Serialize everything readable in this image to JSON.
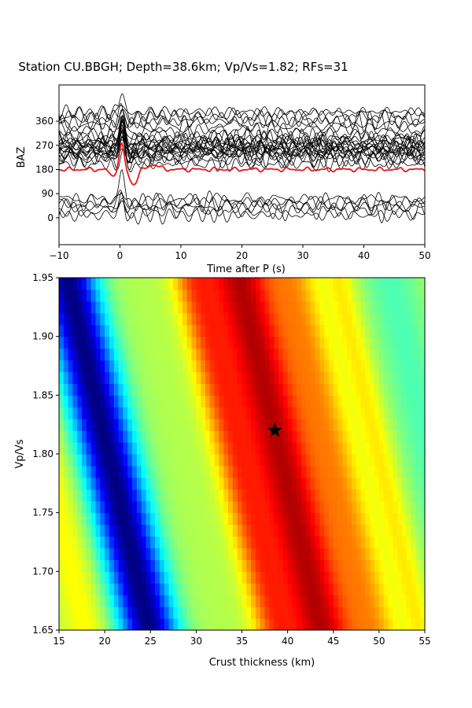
{
  "title": "Station CU.BBGH; Depth=38.6km; Vp/Vs=1.82; RFs=31",
  "chart_data": [
    {
      "type": "line",
      "name": "receiver-functions",
      "xlabel": "Time after P (s)",
      "ylabel": "BAZ",
      "xlim": [
        -10,
        50
      ],
      "ylim": [
        -100,
        495
      ],
      "xticks": [
        -10,
        0,
        10,
        20,
        30,
        40,
        50
      ],
      "yticks": [
        0,
        90,
        180,
        270,
        360
      ],
      "trace_count": 31,
      "trace_color": "#000000",
      "stack_color": "#e8161b",
      "stack_baz": 180,
      "trace_baz": [
        10,
        25,
        40,
        50,
        60,
        70,
        200,
        215,
        225,
        232,
        238,
        242,
        246,
        250,
        254,
        258,
        262,
        266,
        270,
        275,
        280,
        286,
        292,
        300,
        310,
        330,
        345,
        360,
        372,
        385,
        395
      ],
      "grid": false
    },
    {
      "type": "heatmap",
      "name": "hk-stacking",
      "xlabel": "Crust thickness (km)",
      "ylabel": "Vp/Vs",
      "xlim": [
        15,
        55
      ],
      "ylim": [
        1.65,
        1.95
      ],
      "xticks": [
        15,
        20,
        25,
        30,
        35,
        40,
        45,
        50,
        55
      ],
      "yticks": [
        "1.65",
        "1.70",
        "1.75",
        "1.80",
        "1.85",
        "1.90",
        "1.95"
      ],
      "colormap": "jet",
      "best_fit": {
        "h": 38.6,
        "k": 1.82
      },
      "marker": "star"
    }
  ]
}
